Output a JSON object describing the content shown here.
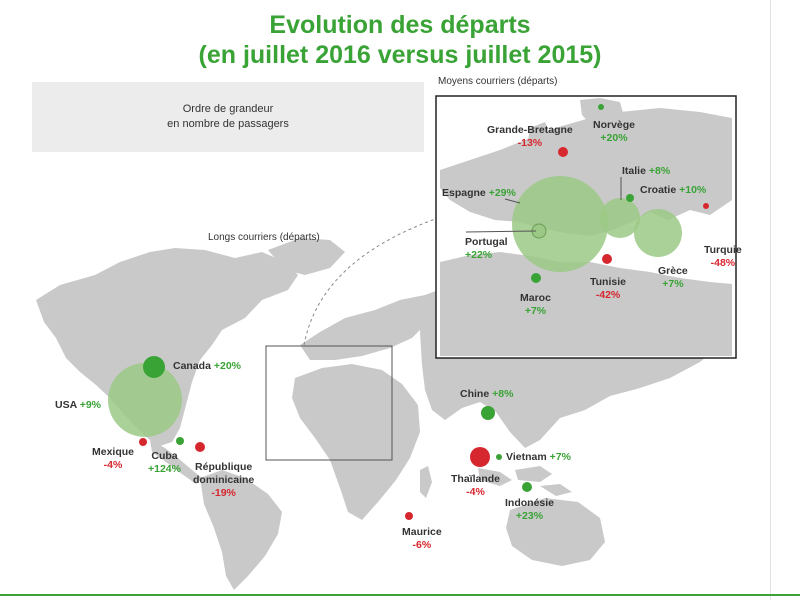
{
  "title_line1": "Evolution des départs",
  "title_line2": "(en juillet 2016 versus juillet 2015)",
  "legend": {
    "line1": "Ordre de grandeur",
    "line2": "en nombre de passagers"
  },
  "long_haul_label": "Longs courriers (départs)",
  "medium_haul_label": "Moyens courriers (départs)",
  "colors": {
    "increase": "#3aa336",
    "decrease": "#d6272f",
    "land": "#c9c9c9",
    "bubble": "#9bc985"
  },
  "long_haul": [
    {
      "name": "Canada",
      "change": "+20%",
      "trend": "up"
    },
    {
      "name": "USA",
      "change": "+9%",
      "trend": "up"
    },
    {
      "name": "Mexique",
      "change": "-4%",
      "trend": "down"
    },
    {
      "name": "Cuba",
      "change": "+124%",
      "trend": "up"
    },
    {
      "name": "République",
      "name2": "dominicaine",
      "change": "-19%",
      "trend": "down"
    },
    {
      "name": "Chine",
      "change": "+8%",
      "trend": "up"
    },
    {
      "name": "Vietnam",
      "change": "+7%",
      "trend": "up"
    },
    {
      "name": "Thaïlande",
      "change": "-4%",
      "trend": "down"
    },
    {
      "name": "Indonésie",
      "change": "+23%",
      "trend": "up"
    },
    {
      "name": "Maurice",
      "change": "-6%",
      "trend": "down"
    }
  ],
  "medium_haul": [
    {
      "name": "Grande-Bretagne",
      "change": "-13%",
      "trend": "down"
    },
    {
      "name": "Norvège",
      "change": "+20%",
      "trend": "up"
    },
    {
      "name": "Espagne",
      "change": "+29%",
      "trend": "up"
    },
    {
      "name": "Italie",
      "change": "+8%",
      "trend": "up"
    },
    {
      "name": "Croatie",
      "change": "+10%",
      "trend": "up"
    },
    {
      "name": "Portugal",
      "change": "+22%",
      "trend": "up"
    },
    {
      "name": "Tunisie",
      "change": "-42%",
      "trend": "down"
    },
    {
      "name": "Grèce",
      "change": "+7%",
      "trend": "up"
    },
    {
      "name": "Turquie",
      "change": "-48%",
      "trend": "down"
    },
    {
      "name": "Maroc",
      "change": "+7%",
      "trend": "up"
    }
  ]
}
